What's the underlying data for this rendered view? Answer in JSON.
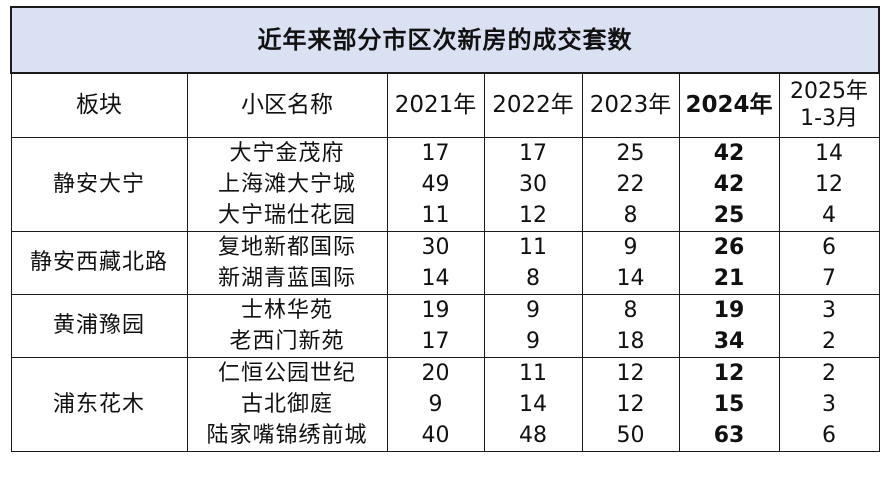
{
  "table": {
    "title": "近年来部分市区次新房的成交套数",
    "headers": {
      "district": "板块",
      "name": "小区名称",
      "y2021": "2021年",
      "y2022": "2022年",
      "y2023": "2023年",
      "y2024": "2024年",
      "y2025_line1": "2025年",
      "y2025_line2": "1-3月"
    },
    "groups": [
      {
        "district": "静安大宁",
        "rows": [
          {
            "name": "大宁金茂府",
            "v2021": "17",
            "v2022": "17",
            "v2023": "25",
            "v2024": "42",
            "v2025": "14"
          },
          {
            "name": "上海滩大宁城",
            "v2021": "49",
            "v2022": "30",
            "v2023": "22",
            "v2024": "42",
            "v2025": "12"
          },
          {
            "name": "大宁瑞仕花园",
            "v2021": "11",
            "v2022": "12",
            "v2023": "8",
            "v2024": "25",
            "v2025": "4"
          }
        ]
      },
      {
        "district": "静安西藏北路",
        "rows": [
          {
            "name": "复地新都国际",
            "v2021": "30",
            "v2022": "11",
            "v2023": "9",
            "v2024": "26",
            "v2025": "6"
          },
          {
            "name": "新湖青蓝国际",
            "v2021": "14",
            "v2022": "8",
            "v2023": "14",
            "v2024": "21",
            "v2025": "7"
          }
        ]
      },
      {
        "district": "黄浦豫园",
        "rows": [
          {
            "name": "士林华苑",
            "v2021": "19",
            "v2022": "9",
            "v2023": "8",
            "v2024": "19",
            "v2025": "3"
          },
          {
            "name": "老西门新苑",
            "v2021": "17",
            "v2022": "9",
            "v2023": "18",
            "v2024": "34",
            "v2025": "2"
          }
        ]
      },
      {
        "district": "浦东花木",
        "rows": [
          {
            "name": "仁恒公园世纪",
            "v2021": "20",
            "v2022": "11",
            "v2023": "12",
            "v2024": "12",
            "v2025": "2"
          },
          {
            "name": "古北御庭",
            "v2021": "9",
            "v2022": "14",
            "v2023": "12",
            "v2024": "15",
            "v2025": "3"
          },
          {
            "name": "陆家嘴锦绣前城",
            "v2021": "40",
            "v2022": "48",
            "v2023": "50",
            "v2024": "63",
            "v2025": "6"
          }
        ]
      }
    ]
  },
  "colors": {
    "title_background": "#d9e1f2",
    "grid_line": "#1a1a1a"
  }
}
